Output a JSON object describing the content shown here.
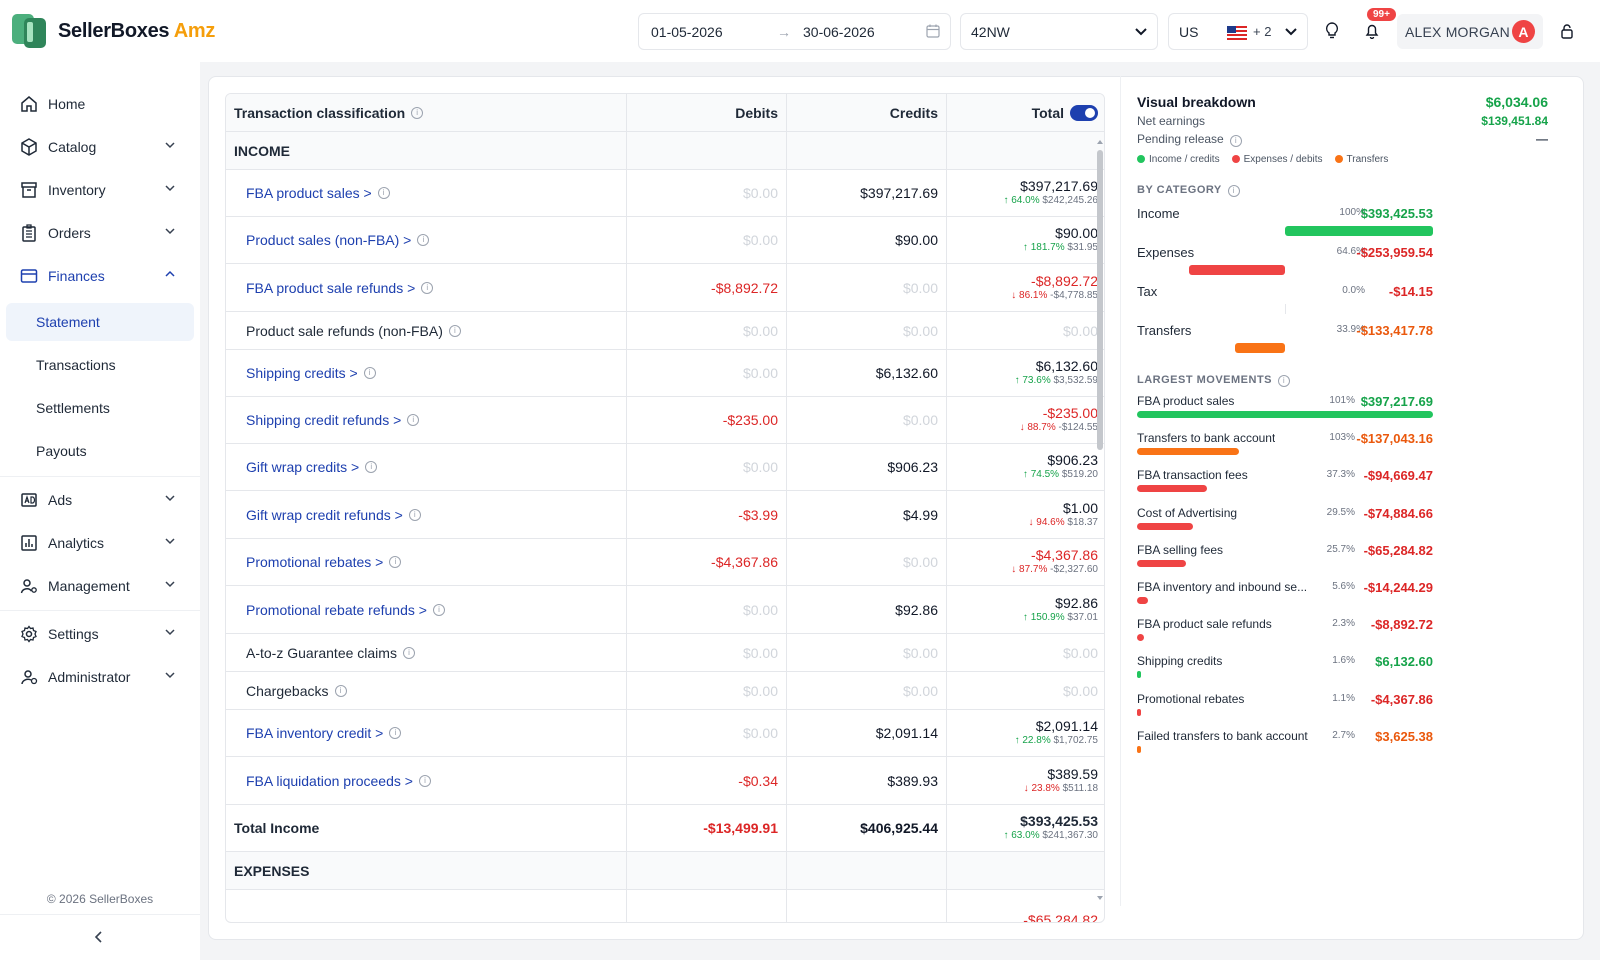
{
  "brand": {
    "name": "SellerBoxes",
    "suffix": "Amz"
  },
  "topbar": {
    "date_from": "01-05-2026",
    "date_arrow": "→",
    "date_to": "30-06-2026",
    "store": "42NW",
    "marketplace": "US",
    "marketplace_extra": "+ 2",
    "notifications_badge": "99+",
    "user_name": "ALEX MORGAN",
    "user_initial": "A"
  },
  "sidebar": {
    "items": [
      {
        "label": "Home",
        "icon": "home-icon"
      },
      {
        "label": "Catalog",
        "icon": "box-icon"
      },
      {
        "label": "Inventory",
        "icon": "archive-icon"
      },
      {
        "label": "Orders",
        "icon": "clipboard-icon"
      },
      {
        "label": "Finances",
        "icon": "wallet-icon"
      },
      {
        "label": "Ads",
        "icon": "ad-icon"
      },
      {
        "label": "Analytics",
        "icon": "chart-icon"
      },
      {
        "label": "Management",
        "icon": "users-cog-icon"
      },
      {
        "label": "Settings",
        "icon": "gear-icon"
      },
      {
        "label": "Administrator",
        "icon": "admin-icon"
      }
    ],
    "finance_sub": [
      "Statement",
      "Transactions",
      "Settlements",
      "Payouts"
    ],
    "copyright": "© 2026 SellerBoxes"
  },
  "table": {
    "headers": {
      "classification": "Transaction classification",
      "debits": "Debits",
      "credits": "Credits",
      "total": "Total"
    },
    "income_section": "INCOME",
    "expenses_section": "EXPENSES",
    "rows": [
      {
        "label": "FBA product sales >",
        "link": true,
        "debit": "$0.00",
        "credit": "$397,217.69",
        "total": "$397,217.69",
        "change": "64.0%",
        "prev": "$242,245.26",
        "dir": "up",
        "neg_debit": false,
        "neg_total": false
      },
      {
        "label": "Product sales (non-FBA) >",
        "link": true,
        "debit": "$0.00",
        "credit": "$90.00",
        "total": "$90.00",
        "change": "181.7%",
        "prev": "$31.95",
        "dir": "up",
        "neg_debit": false,
        "neg_total": false
      },
      {
        "label": "FBA product sale refunds >",
        "link": true,
        "debit": "-$8,892.72",
        "credit": "$0.00",
        "total": "-$8,892.72",
        "change": "86.1%",
        "prev": "-$4,778.85",
        "dir": "down",
        "neg_debit": true,
        "neg_total": true
      },
      {
        "label": "Product sale refunds (non-FBA)",
        "link": false,
        "debit": "$0.00",
        "credit": "$0.00",
        "total": "$0.00",
        "change": "",
        "prev": "",
        "dir": "",
        "neg_debit": false,
        "neg_total": false
      },
      {
        "label": "Shipping credits >",
        "link": true,
        "debit": "$0.00",
        "credit": "$6,132.60",
        "total": "$6,132.60",
        "change": "73.6%",
        "prev": "$3,532.59",
        "dir": "up",
        "neg_debit": false,
        "neg_total": false
      },
      {
        "label": "Shipping credit refunds >",
        "link": true,
        "debit": "-$235.00",
        "credit": "$0.00",
        "total": "-$235.00",
        "change": "88.7%",
        "prev": "-$124.55",
        "dir": "down",
        "neg_debit": true,
        "neg_total": true
      },
      {
        "label": "Gift wrap credits >",
        "link": true,
        "debit": "$0.00",
        "credit": "$906.23",
        "total": "$906.23",
        "change": "74.5%",
        "prev": "$519.20",
        "dir": "up",
        "neg_debit": false,
        "neg_total": false
      },
      {
        "label": "Gift wrap credit refunds >",
        "link": true,
        "debit": "-$3.99",
        "credit": "$4.99",
        "total": "$1.00",
        "change": "94.6%",
        "prev": "$18.37",
        "dir": "down",
        "neg_debit": true,
        "neg_total": false
      },
      {
        "label": "Promotional rebates >",
        "link": true,
        "debit": "-$4,367.86",
        "credit": "$0.00",
        "total": "-$4,367.86",
        "change": "87.7%",
        "prev": "-$2,327.60",
        "dir": "down",
        "neg_debit": true,
        "neg_total": true
      },
      {
        "label": "Promotional rebate refunds >",
        "link": true,
        "debit": "$0.00",
        "credit": "$92.86",
        "total": "$92.86",
        "change": "150.9%",
        "prev": "$37.01",
        "dir": "up",
        "neg_debit": false,
        "neg_total": false
      },
      {
        "label": "A-to-z Guarantee claims",
        "link": false,
        "debit": "$0.00",
        "credit": "$0.00",
        "total": "$0.00",
        "change": "",
        "prev": "",
        "dir": "",
        "neg_debit": false,
        "neg_total": false
      },
      {
        "label": "Chargebacks",
        "link": false,
        "debit": "$0.00",
        "credit": "$0.00",
        "total": "$0.00",
        "change": "",
        "prev": "",
        "dir": "",
        "neg_debit": false,
        "neg_total": false
      },
      {
        "label": "FBA inventory credit >",
        "link": true,
        "debit": "$0.00",
        "credit": "$2,091.14",
        "total": "$2,091.14",
        "change": "22.8%",
        "prev": "$1,702.75",
        "dir": "up",
        "neg_debit": false,
        "neg_total": false
      },
      {
        "label": "FBA liquidation proceeds >",
        "link": true,
        "debit": "-$0.34",
        "credit": "$389.93",
        "total": "$389.59",
        "change": "23.8%",
        "prev": "$511.18",
        "dir": "down",
        "neg_debit": true,
        "neg_total": false
      }
    ],
    "total_income": {
      "label": "Total Income",
      "debit": "-$13,499.91",
      "credit": "$406,925.44",
      "total": "$393,425.53",
      "change": "63.0%",
      "prev": "$241,367.30"
    },
    "expenses_first_total": "-$65,284.82"
  },
  "breakdown": {
    "title": "Visual breakdown",
    "title_value": "$6,034.06",
    "net_label": "Net earnings",
    "net_value": "$139,451.84",
    "pending_label": "Pending release",
    "pending_value": "—",
    "legend": [
      "Income / credits",
      "Expenses / debits",
      "Transfers"
    ],
    "colors": {
      "income": "#22c55e",
      "expense": "#ef4444",
      "transfer": "#f97316"
    },
    "category_caption": "BY CATEGORY",
    "categories": [
      {
        "name": "Income",
        "pct": "100%",
        "amount": "$393,425.53",
        "kind": "income",
        "share": 1.0
      },
      {
        "name": "Expenses",
        "pct": "64.6%",
        "amount": "-$253,959.54",
        "kind": "expense",
        "share": 0.646
      },
      {
        "name": "Tax",
        "pct": "0.0%",
        "amount": "-$14.15",
        "kind": "expense",
        "share": 0.0
      },
      {
        "name": "Transfers",
        "pct": "33.9%",
        "amount": "-$133,417.78",
        "kind": "transfer",
        "share": 0.339
      }
    ],
    "movements_caption": "LARGEST MOVEMENTS",
    "movements": [
      {
        "name": "FBA product sales",
        "pct": "101%",
        "amount": "$397,217.69",
        "kind": "income",
        "share": 1.0
      },
      {
        "name": "Transfers to bank account",
        "pct": "103%",
        "amount": "-$137,043.16",
        "kind": "transfer",
        "share": 0.345
      },
      {
        "name": "FBA transaction fees",
        "pct": "37.3%",
        "amount": "-$94,669.47",
        "kind": "expense",
        "share": 0.238
      },
      {
        "name": "Cost of Advertising",
        "pct": "29.5%",
        "amount": "-$74,884.66",
        "kind": "expense",
        "share": 0.189
      },
      {
        "name": "FBA selling fees",
        "pct": "25.7%",
        "amount": "-$65,284.82",
        "kind": "expense",
        "share": 0.164
      },
      {
        "name": "FBA inventory and inbound se...",
        "pct": "5.6%",
        "amount": "-$14,244.29",
        "kind": "expense",
        "share": 0.036
      },
      {
        "name": "FBA product sale refunds",
        "pct": "2.3%",
        "amount": "-$8,892.72",
        "kind": "expense",
        "share": 0.022
      },
      {
        "name": "Shipping credits",
        "pct": "1.6%",
        "amount": "$6,132.60",
        "kind": "income",
        "share": 0.015
      },
      {
        "name": "Promotional rebates",
        "pct": "1.1%",
        "amount": "-$4,367.86",
        "kind": "expense",
        "share": 0.011
      },
      {
        "name": "Failed transfers to bank account",
        "pct": "2.7%",
        "amount": "$3,625.38",
        "kind": "transfer",
        "share": 0.009
      }
    ]
  }
}
